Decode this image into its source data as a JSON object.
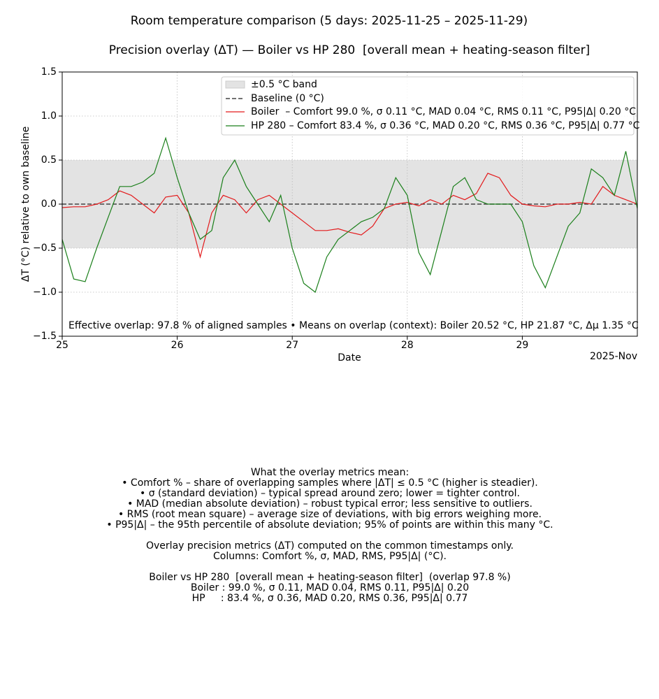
{
  "chart_data": {
    "type": "line",
    "title": "Room temperature comparison (5 days: 2025-11-25 – 2025-11-29)",
    "subtitle": "Precision overlay (ΔT) — Boiler vs HP 280  [overall mean + heating-season filter]",
    "x_label": "Date",
    "y_label": "ΔT (°C) relative to own baseline",
    "x_offset_label": "2025-Nov",
    "annotation": "Effective overlap: 97.8 % of aligned samples • Means on overlap (context): Boiler 20.52 °C, HP 21.87 °C, Δμ 1.35 °C",
    "band": {
      "name": "±0.5 °C band",
      "range": [
        -0.5,
        0.5
      ],
      "color": "#e3e3e3"
    },
    "baseline": {
      "name": "Baseline (0 °C)",
      "value": 0,
      "color": "#444444"
    },
    "x": [
      25.0,
      25.1,
      25.2,
      25.3,
      25.4,
      25.5,
      25.6,
      25.7,
      25.8,
      25.9,
      26.0,
      26.1,
      26.2,
      26.3,
      26.4,
      26.5,
      26.6,
      26.7,
      26.8,
      26.9,
      27.0,
      27.1,
      27.2,
      27.3,
      27.4,
      27.5,
      27.6,
      27.7,
      27.8,
      27.9,
      28.0,
      28.1,
      28.2,
      28.3,
      28.4,
      28.5,
      28.6,
      28.7,
      28.8,
      28.9,
      29.0,
      29.1,
      29.2,
      29.3,
      29.4,
      29.5,
      29.6,
      29.7,
      29.8,
      29.9,
      30.0
    ],
    "series": [
      {
        "name": "Boiler  – Comfort 99.0 %, σ 0.11 °C, MAD 0.04 °C, RMS 0.11 °C, P95|Δ| 0.20 °C",
        "color": "#e31a1c",
        "values": [
          -0.04,
          -0.03,
          -0.03,
          0.0,
          0.05,
          0.15,
          0.1,
          0.0,
          -0.1,
          0.08,
          0.1,
          -0.1,
          -0.6,
          -0.1,
          0.1,
          0.05,
          -0.1,
          0.05,
          0.1,
          0.0,
          -0.1,
          -0.2,
          -0.3,
          -0.3,
          -0.28,
          -0.32,
          -0.35,
          -0.25,
          -0.05,
          0.0,
          0.02,
          -0.02,
          0.05,
          0.0,
          0.1,
          0.05,
          0.12,
          0.35,
          0.3,
          0.1,
          0.0,
          -0.02,
          -0.03,
          0.0,
          0.0,
          0.02,
          0.0,
          0.2,
          0.1,
          0.05,
          0.0
        ]
      },
      {
        "name": "HP 280 – Comfort 83.4 %, σ 0.36 °C, MAD 0.20 °C, RMS 0.36 °C, P95|Δ| 0.77 °C",
        "color": "#1a7f1a",
        "values": [
          -0.4,
          -0.85,
          -0.88,
          -0.5,
          -0.15,
          0.2,
          0.2,
          0.25,
          0.35,
          0.75,
          0.3,
          -0.1,
          -0.4,
          -0.3,
          0.3,
          0.5,
          0.2,
          0.0,
          -0.2,
          0.1,
          -0.5,
          -0.9,
          -1.0,
          -0.6,
          -0.4,
          -0.3,
          -0.2,
          -0.15,
          -0.05,
          0.3,
          0.1,
          -0.55,
          -0.8,
          -0.3,
          0.2,
          0.3,
          0.05,
          0.0,
          0.0,
          0.0,
          -0.2,
          -0.7,
          -0.95,
          -0.6,
          -0.25,
          -0.1,
          0.4,
          0.3,
          0.1,
          0.6,
          -0.05
        ]
      }
    ],
    "xlim": [
      25,
      30
    ],
    "xticks": [
      25,
      26,
      27,
      28,
      29
    ],
    "ylim": [
      -1.5,
      1.5
    ],
    "yticks": [
      {
        "value": -1.5,
        "label": "−1.5"
      },
      {
        "value": -1.0,
        "label": "−1.0"
      },
      {
        "value": -0.5,
        "label": "−0.5"
      },
      {
        "value": 0,
        "label": "0.0"
      },
      0.5,
      {
        "value": 1.0,
        "label": "1.0"
      },
      1.5
    ],
    "grid": true,
    "legend": "top"
  },
  "notes": {
    "explanation": [
      "What the overlay metrics mean:",
      "• Comfort % – share of overlapping samples where |ΔT| ≤ 0.5 °C (higher is steadier).",
      "• σ (standard deviation) – typical spread around zero; lower = tighter control.",
      "• MAD (median absolute deviation) – robust typical error; less sensitive to outliers.",
      "• RMS (root mean square) – average size of deviations, with big errors weighing more.",
      "• P95|Δ| – the 95th percentile of absolute deviation; 95% of points are within this many °C."
    ],
    "method": [
      "Overlay precision metrics (ΔT) computed on the common timestamps only.",
      "Columns: Comfort %, σ, MAD, RMS, P95|Δ| (°C)."
    ],
    "comparison": [
      "Boiler vs HP 280  [overall mean + heating-season filter]  (overlap 97.8 %)",
      "Boiler : 99.0 %, σ 0.11, MAD 0.04, RMS 0.11, P95|Δ| 0.20",
      "HP     : 83.4 %, σ 0.36, MAD 0.20, RMS 0.36, P95|Δ| 0.77"
    ]
  }
}
